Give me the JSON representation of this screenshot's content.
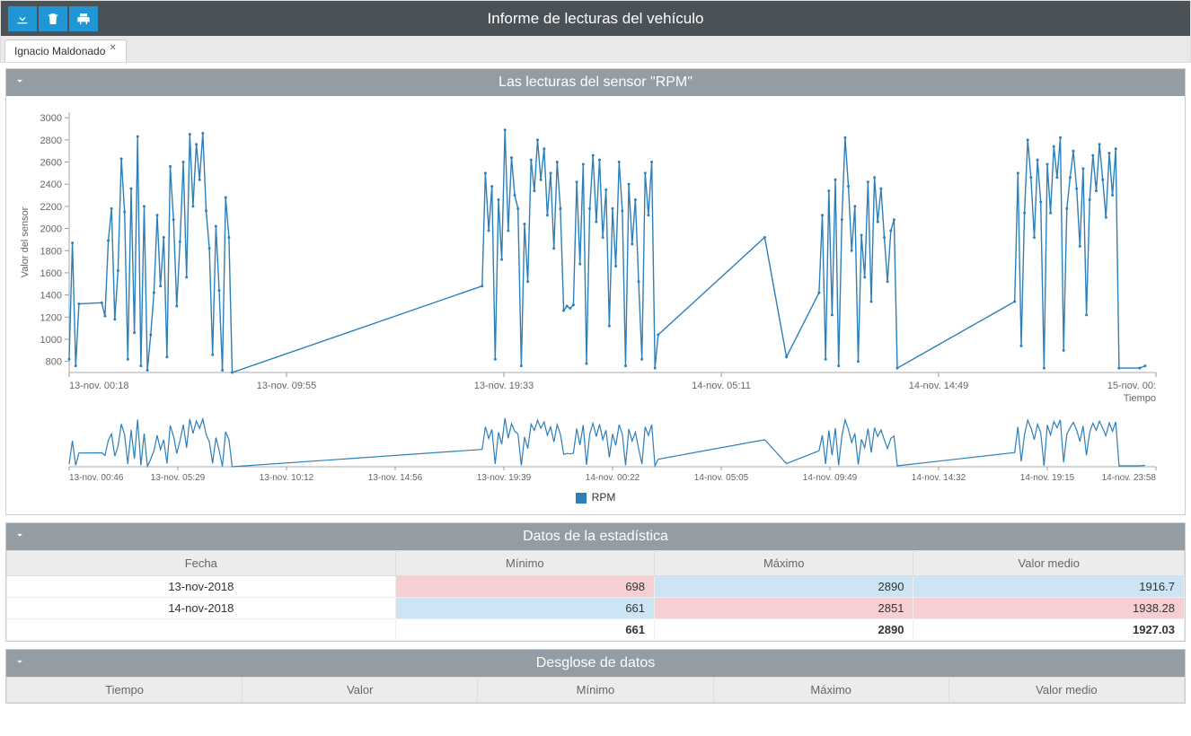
{
  "header": {
    "title": "Informe de lecturas del vehículo",
    "icons": [
      "download",
      "trash",
      "print"
    ]
  },
  "tab": {
    "label": "Ignacio Maldonado"
  },
  "chart_panel": {
    "title": "Las lecturas del sensor \"RPM\"",
    "y_axis_label": "Valor del sensor",
    "x_axis_label": "Tiempo",
    "line_color": "#2c7fb8",
    "marker_radius": 1.5,
    "y_ticks": [
      800,
      1000,
      1200,
      1400,
      1600,
      1800,
      2000,
      2200,
      2400,
      2600,
      2800,
      3000
    ],
    "ylim": [
      700,
      3050
    ],
    "x_ticks": [
      "13-nov. 00:18",
      "13-nov. 09:55",
      "13-nov. 19:33",
      "14-nov. 05:11",
      "14-nov. 14:49",
      "15-nov. 00:"
    ],
    "x_tick_positions": [
      0,
      0.2,
      0.4,
      0.6,
      0.8,
      1.0
    ],
    "mini_x_ticks": [
      "13-nov. 00:46",
      "13-nov. 05:29",
      "13-nov. 10:12",
      "13-nov. 14:56",
      "13-nov. 19:39",
      "14-nov. 00:22",
      "14-nov. 05:05",
      "14-nov. 09:49",
      "14-nov. 14:32",
      "14-nov. 19:15",
      "14-nov. 23:58"
    ],
    "legend_label": "RPM",
    "series": [
      [
        0.0,
        820
      ],
      [
        0.003,
        1870
      ],
      [
        0.006,
        760
      ],
      [
        0.009,
        1320
      ],
      [
        0.03,
        1330
      ],
      [
        0.033,
        1210
      ],
      [
        0.036,
        1890
      ],
      [
        0.039,
        2180
      ],
      [
        0.042,
        1180
      ],
      [
        0.045,
        1620
      ],
      [
        0.048,
        2630
      ],
      [
        0.051,
        2150
      ],
      [
        0.054,
        820
      ],
      [
        0.057,
        2360
      ],
      [
        0.06,
        1060
      ],
      [
        0.063,
        2830
      ],
      [
        0.066,
        760
      ],
      [
        0.069,
        2200
      ],
      [
        0.072,
        720
      ],
      [
        0.075,
        1040
      ],
      [
        0.078,
        1420
      ],
      [
        0.081,
        2120
      ],
      [
        0.084,
        1480
      ],
      [
        0.087,
        1920
      ],
      [
        0.09,
        840
      ],
      [
        0.093,
        2560
      ],
      [
        0.096,
        2080
      ],
      [
        0.099,
        1300
      ],
      [
        0.102,
        1880
      ],
      [
        0.105,
        2600
      ],
      [
        0.108,
        1560
      ],
      [
        0.111,
        2850
      ],
      [
        0.114,
        2200
      ],
      [
        0.117,
        2760
      ],
      [
        0.12,
        2440
      ],
      [
        0.123,
        2860
      ],
      [
        0.126,
        2160
      ],
      [
        0.129,
        1820
      ],
      [
        0.132,
        860
      ],
      [
        0.135,
        2020
      ],
      [
        0.138,
        1440
      ],
      [
        0.141,
        720
      ],
      [
        0.144,
        2280
      ],
      [
        0.147,
        1920
      ],
      [
        0.15,
        700
      ],
      [
        0.38,
        1480
      ],
      [
        0.383,
        2500
      ],
      [
        0.386,
        1980
      ],
      [
        0.389,
        2380
      ],
      [
        0.392,
        820
      ],
      [
        0.395,
        2260
      ],
      [
        0.398,
        1720
      ],
      [
        0.401,
        2890
      ],
      [
        0.404,
        1980
      ],
      [
        0.407,
        2640
      ],
      [
        0.41,
        2300
      ],
      [
        0.413,
        2180
      ],
      [
        0.416,
        760
      ],
      [
        0.419,
        2040
      ],
      [
        0.422,
        1520
      ],
      [
        0.425,
        2620
      ],
      [
        0.428,
        2340
      ],
      [
        0.431,
        2800
      ],
      [
        0.434,
        2440
      ],
      [
        0.437,
        2720
      ],
      [
        0.44,
        2120
      ],
      [
        0.443,
        2500
      ],
      [
        0.446,
        1820
      ],
      [
        0.449,
        2600
      ],
      [
        0.452,
        2180
      ],
      [
        0.455,
        1260
      ],
      [
        0.458,
        1300
      ],
      [
        0.461,
        1280
      ],
      [
        0.464,
        1310
      ],
      [
        0.467,
        2420
      ],
      [
        0.47,
        1680
      ],
      [
        0.473,
        2580
      ],
      [
        0.476,
        780
      ],
      [
        0.479,
        2180
      ],
      [
        0.482,
        2660
      ],
      [
        0.485,
        2060
      ],
      [
        0.488,
        2620
      ],
      [
        0.491,
        1920
      ],
      [
        0.494,
        2350
      ],
      [
        0.497,
        1120
      ],
      [
        0.5,
        2180
      ],
      [
        0.503,
        1660
      ],
      [
        0.506,
        2600
      ],
      [
        0.509,
        2160
      ],
      [
        0.512,
        760
      ],
      [
        0.515,
        2400
      ],
      [
        0.518,
        1860
      ],
      [
        0.521,
        2260
      ],
      [
        0.524,
        1520
      ],
      [
        0.527,
        820
      ],
      [
        0.53,
        2500
      ],
      [
        0.533,
        2120
      ],
      [
        0.536,
        2600
      ],
      [
        0.539,
        740
      ],
      [
        0.542,
        1040
      ],
      [
        0.64,
        1920
      ],
      [
        0.66,
        840
      ],
      [
        0.69,
        1420
      ],
      [
        0.693,
        2120
      ],
      [
        0.696,
        820
      ],
      [
        0.699,
        2340
      ],
      [
        0.702,
        1220
      ],
      [
        0.705,
        2440
      ],
      [
        0.708,
        760
      ],
      [
        0.711,
        2080
      ],
      [
        0.714,
        2820
      ],
      [
        0.717,
        2380
      ],
      [
        0.72,
        1800
      ],
      [
        0.723,
        2200
      ],
      [
        0.726,
        800
      ],
      [
        0.729,
        1940
      ],
      [
        0.732,
        1560
      ],
      [
        0.735,
        2420
      ],
      [
        0.738,
        1340
      ],
      [
        0.741,
        2460
      ],
      [
        0.744,
        2060
      ],
      [
        0.747,
        2360
      ],
      [
        0.75,
        1920
      ],
      [
        0.753,
        1520
      ],
      [
        0.756,
        1980
      ],
      [
        0.759,
        2080
      ],
      [
        0.762,
        740
      ],
      [
        0.87,
        1340
      ],
      [
        0.873,
        2500
      ],
      [
        0.876,
        940
      ],
      [
        0.879,
        2140
      ],
      [
        0.882,
        2800
      ],
      [
        0.885,
        2460
      ],
      [
        0.888,
        1920
      ],
      [
        0.891,
        2620
      ],
      [
        0.894,
        2240
      ],
      [
        0.897,
        740
      ],
      [
        0.9,
        2580
      ],
      [
        0.903,
        2140
      ],
      [
        0.906,
        2740
      ],
      [
        0.909,
        2460
      ],
      [
        0.912,
        2820
      ],
      [
        0.915,
        900
      ],
      [
        0.918,
        2180
      ],
      [
        0.921,
        2460
      ],
      [
        0.924,
        2700
      ],
      [
        0.927,
        2360
      ],
      [
        0.93,
        1840
      ],
      [
        0.933,
        2540
      ],
      [
        0.936,
        1220
      ],
      [
        0.939,
        2260
      ],
      [
        0.942,
        2660
      ],
      [
        0.945,
        2340
      ],
      [
        0.948,
        2760
      ],
      [
        0.951,
        2440
      ],
      [
        0.954,
        2100
      ],
      [
        0.957,
        2680
      ],
      [
        0.96,
        2300
      ],
      [
        0.963,
        2720
      ],
      [
        0.966,
        740
      ],
      [
        0.985,
        740
      ],
      [
        0.99,
        760
      ]
    ]
  },
  "stats_panel": {
    "title": "Datos de la estadística",
    "columns": [
      "Fecha",
      "Mínimo",
      "Máximo",
      "Valor medio"
    ],
    "rows": [
      {
        "date": "13-nov-2018",
        "min": "698",
        "max": "2890",
        "avg": "1916.7",
        "min_cls": "pink",
        "max_cls": "blue",
        "avg_cls": "blue"
      },
      {
        "date": "14-nov-2018",
        "min": "661",
        "max": "2851",
        "avg": "1938.28",
        "min_cls": "blue",
        "max_cls": "pink",
        "avg_cls": "pink"
      }
    ],
    "totals": {
      "min": "661",
      "max": "2890",
      "avg": "1927.03"
    },
    "cell_colors": {
      "pink": "#f6cfd2",
      "blue": "#cce4f3",
      "none": "#ffffff"
    }
  },
  "breakdown_panel": {
    "title": "Desglose de datos",
    "columns": [
      "Tiempo",
      "Valor",
      "Mínimo",
      "Máximo",
      "Valor medio"
    ]
  }
}
